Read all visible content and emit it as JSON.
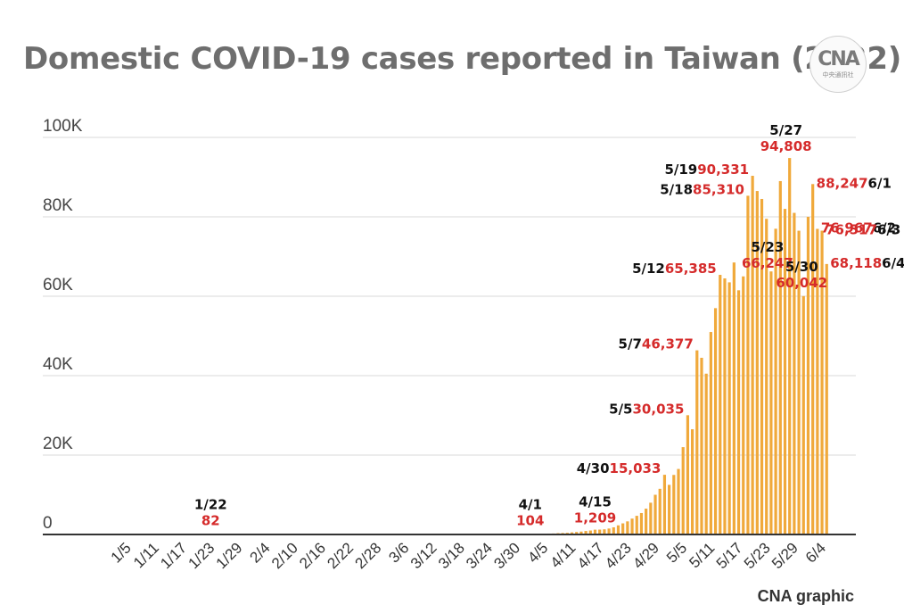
{
  "title": "Domestic COVID-19 cases reported in Taiwan (2022)",
  "logo": {
    "mark": "CNA",
    "sub": "中央通訊社"
  },
  "credit": "CNA graphic",
  "colors": {
    "bar": "#f0a93b",
    "label_value": "#d52b2b",
    "label_date": "#111111",
    "grid": "#d9d9d9",
    "axis": "#333333",
    "title": "#6e6e6e"
  },
  "chart_data": {
    "type": "bar",
    "ylim": [
      0,
      100000
    ],
    "yticks": [
      {
        "value": 0,
        "label": "0"
      },
      {
        "value": 20000,
        "label": "20K"
      },
      {
        "value": 40000,
        "label": "40K"
      },
      {
        "value": 60000,
        "label": "60K"
      },
      {
        "value": 80000,
        "label": "80K"
      },
      {
        "value": 100000,
        "label": "100K"
      }
    ],
    "xrange": [
      "2022-01-01",
      "2022-06-04"
    ],
    "xticks": [
      "1/5",
      "1/11",
      "1/17",
      "1/23",
      "1/29",
      "2/4",
      "2/10",
      "2/16",
      "2/22",
      "2/28",
      "3/6",
      "3/12",
      "3/18",
      "3/24",
      "3/30",
      "4/5",
      "4/11",
      "4/17",
      "4/23",
      "4/29",
      "5/5",
      "5/11",
      "5/17",
      "5/23",
      "5/29",
      "6/4"
    ],
    "grid": true,
    "legend": "none",
    "series": [
      {
        "dates": [
          "4/1",
          "4/2",
          "4/3",
          "4/4",
          "4/5",
          "4/6",
          "4/7",
          "4/8",
          "4/9",
          "4/10",
          "4/11",
          "4/12",
          "4/13",
          "4/14",
          "4/15",
          "4/16",
          "4/17",
          "4/18",
          "4/19",
          "4/20",
          "4/21",
          "4/22",
          "4/23",
          "4/24",
          "4/25",
          "4/26",
          "4/27",
          "4/28",
          "4/29",
          "4/30",
          "5/1",
          "5/2",
          "5/3",
          "5/4",
          "5/5",
          "5/6",
          "5/7",
          "5/8",
          "5/9",
          "5/10",
          "5/11",
          "5/12",
          "5/13",
          "5/14",
          "5/15",
          "5/16",
          "5/17",
          "5/18",
          "5/19",
          "5/20",
          "5/21",
          "5/22",
          "5/23",
          "5/24",
          "5/25",
          "5/26",
          "5/27",
          "5/28",
          "5/29",
          "5/30",
          "5/31",
          "6/1",
          "6/2",
          "6/3",
          "6/4"
        ],
        "values": [
          104,
          110,
          130,
          160,
          230,
          250,
          330,
          380,
          420,
          530,
          630,
          730,
          880,
          1000,
          1209,
          1230,
          1300,
          1500,
          1800,
          2300,
          2800,
          3300,
          4000,
          4700,
          5400,
          6500,
          8000,
          10000,
          11500,
          15033,
          12500,
          15000,
          16500,
          22000,
          30035,
          26500,
          46377,
          44500,
          40500,
          51000,
          57000,
          65385,
          64500,
          63500,
          68500,
          61500,
          65000,
          85310,
          90331,
          86500,
          84500,
          79500,
          66247,
          77000,
          89000,
          82000,
          94808,
          81000,
          76500,
          60042,
          80000,
          88247,
          76967,
          76517,
          68118
        ]
      }
    ],
    "single_bars": [
      {
        "date": "1/22",
        "value": 82
      }
    ],
    "annotations": [
      {
        "date": "1/22",
        "value": 82,
        "date_label": "1/22",
        "value_label": "82",
        "pos": "above-stacked"
      },
      {
        "date": "4/1",
        "value": 104,
        "date_label": "4/1",
        "value_label": "104",
        "pos": "above-stacked"
      },
      {
        "date": "4/15",
        "value": 1209,
        "date_label": "4/15",
        "value_label": "1,209",
        "pos": "above-stacked"
      },
      {
        "date": "4/30",
        "value": 15033,
        "date_label": "4/30",
        "value_label": "15,033",
        "pos": "left"
      },
      {
        "date": "5/5",
        "value": 30035,
        "date_label": "5/5",
        "value_label": "30,035",
        "pos": "left"
      },
      {
        "date": "5/7",
        "value": 46377,
        "date_label": "5/7",
        "value_label": "46,377",
        "pos": "left"
      },
      {
        "date": "5/12",
        "value": 65385,
        "date_label": "5/12",
        "value_label": "65,385",
        "pos": "left"
      },
      {
        "date": "5/18",
        "value": 85310,
        "date_label": "5/18",
        "value_label": "85,310",
        "pos": "left"
      },
      {
        "date": "5/19",
        "value": 90331,
        "date_label": "5/19",
        "value_label": "90,331",
        "pos": "left"
      },
      {
        "date": "5/23",
        "value": 66247,
        "date_label": "5/23",
        "value_label": "66,247",
        "pos": "above-stacked"
      },
      {
        "date": "5/27",
        "value": 94808,
        "date_label": "5/27",
        "value_label": "94,808",
        "pos": "above-stacked"
      },
      {
        "date": "5/30",
        "value": 60042,
        "date_label": "5/30",
        "value_label": "60,042",
        "pos": "above-stacked"
      },
      {
        "date": "6/1",
        "value": 88247,
        "date_label": "6/1",
        "value_label": "88,247",
        "pos": "right"
      },
      {
        "date": "6/2",
        "value": 76967,
        "date_label": "6/2",
        "value_label": "76,967",
        "pos": "right"
      },
      {
        "date": "6/3",
        "value": 76517,
        "date_label": "6/3",
        "value_label": "76,517",
        "pos": "right"
      },
      {
        "date": "6/4",
        "value": 68118,
        "date_label": "6/4",
        "value_label": "68,118",
        "pos": "right"
      }
    ]
  }
}
